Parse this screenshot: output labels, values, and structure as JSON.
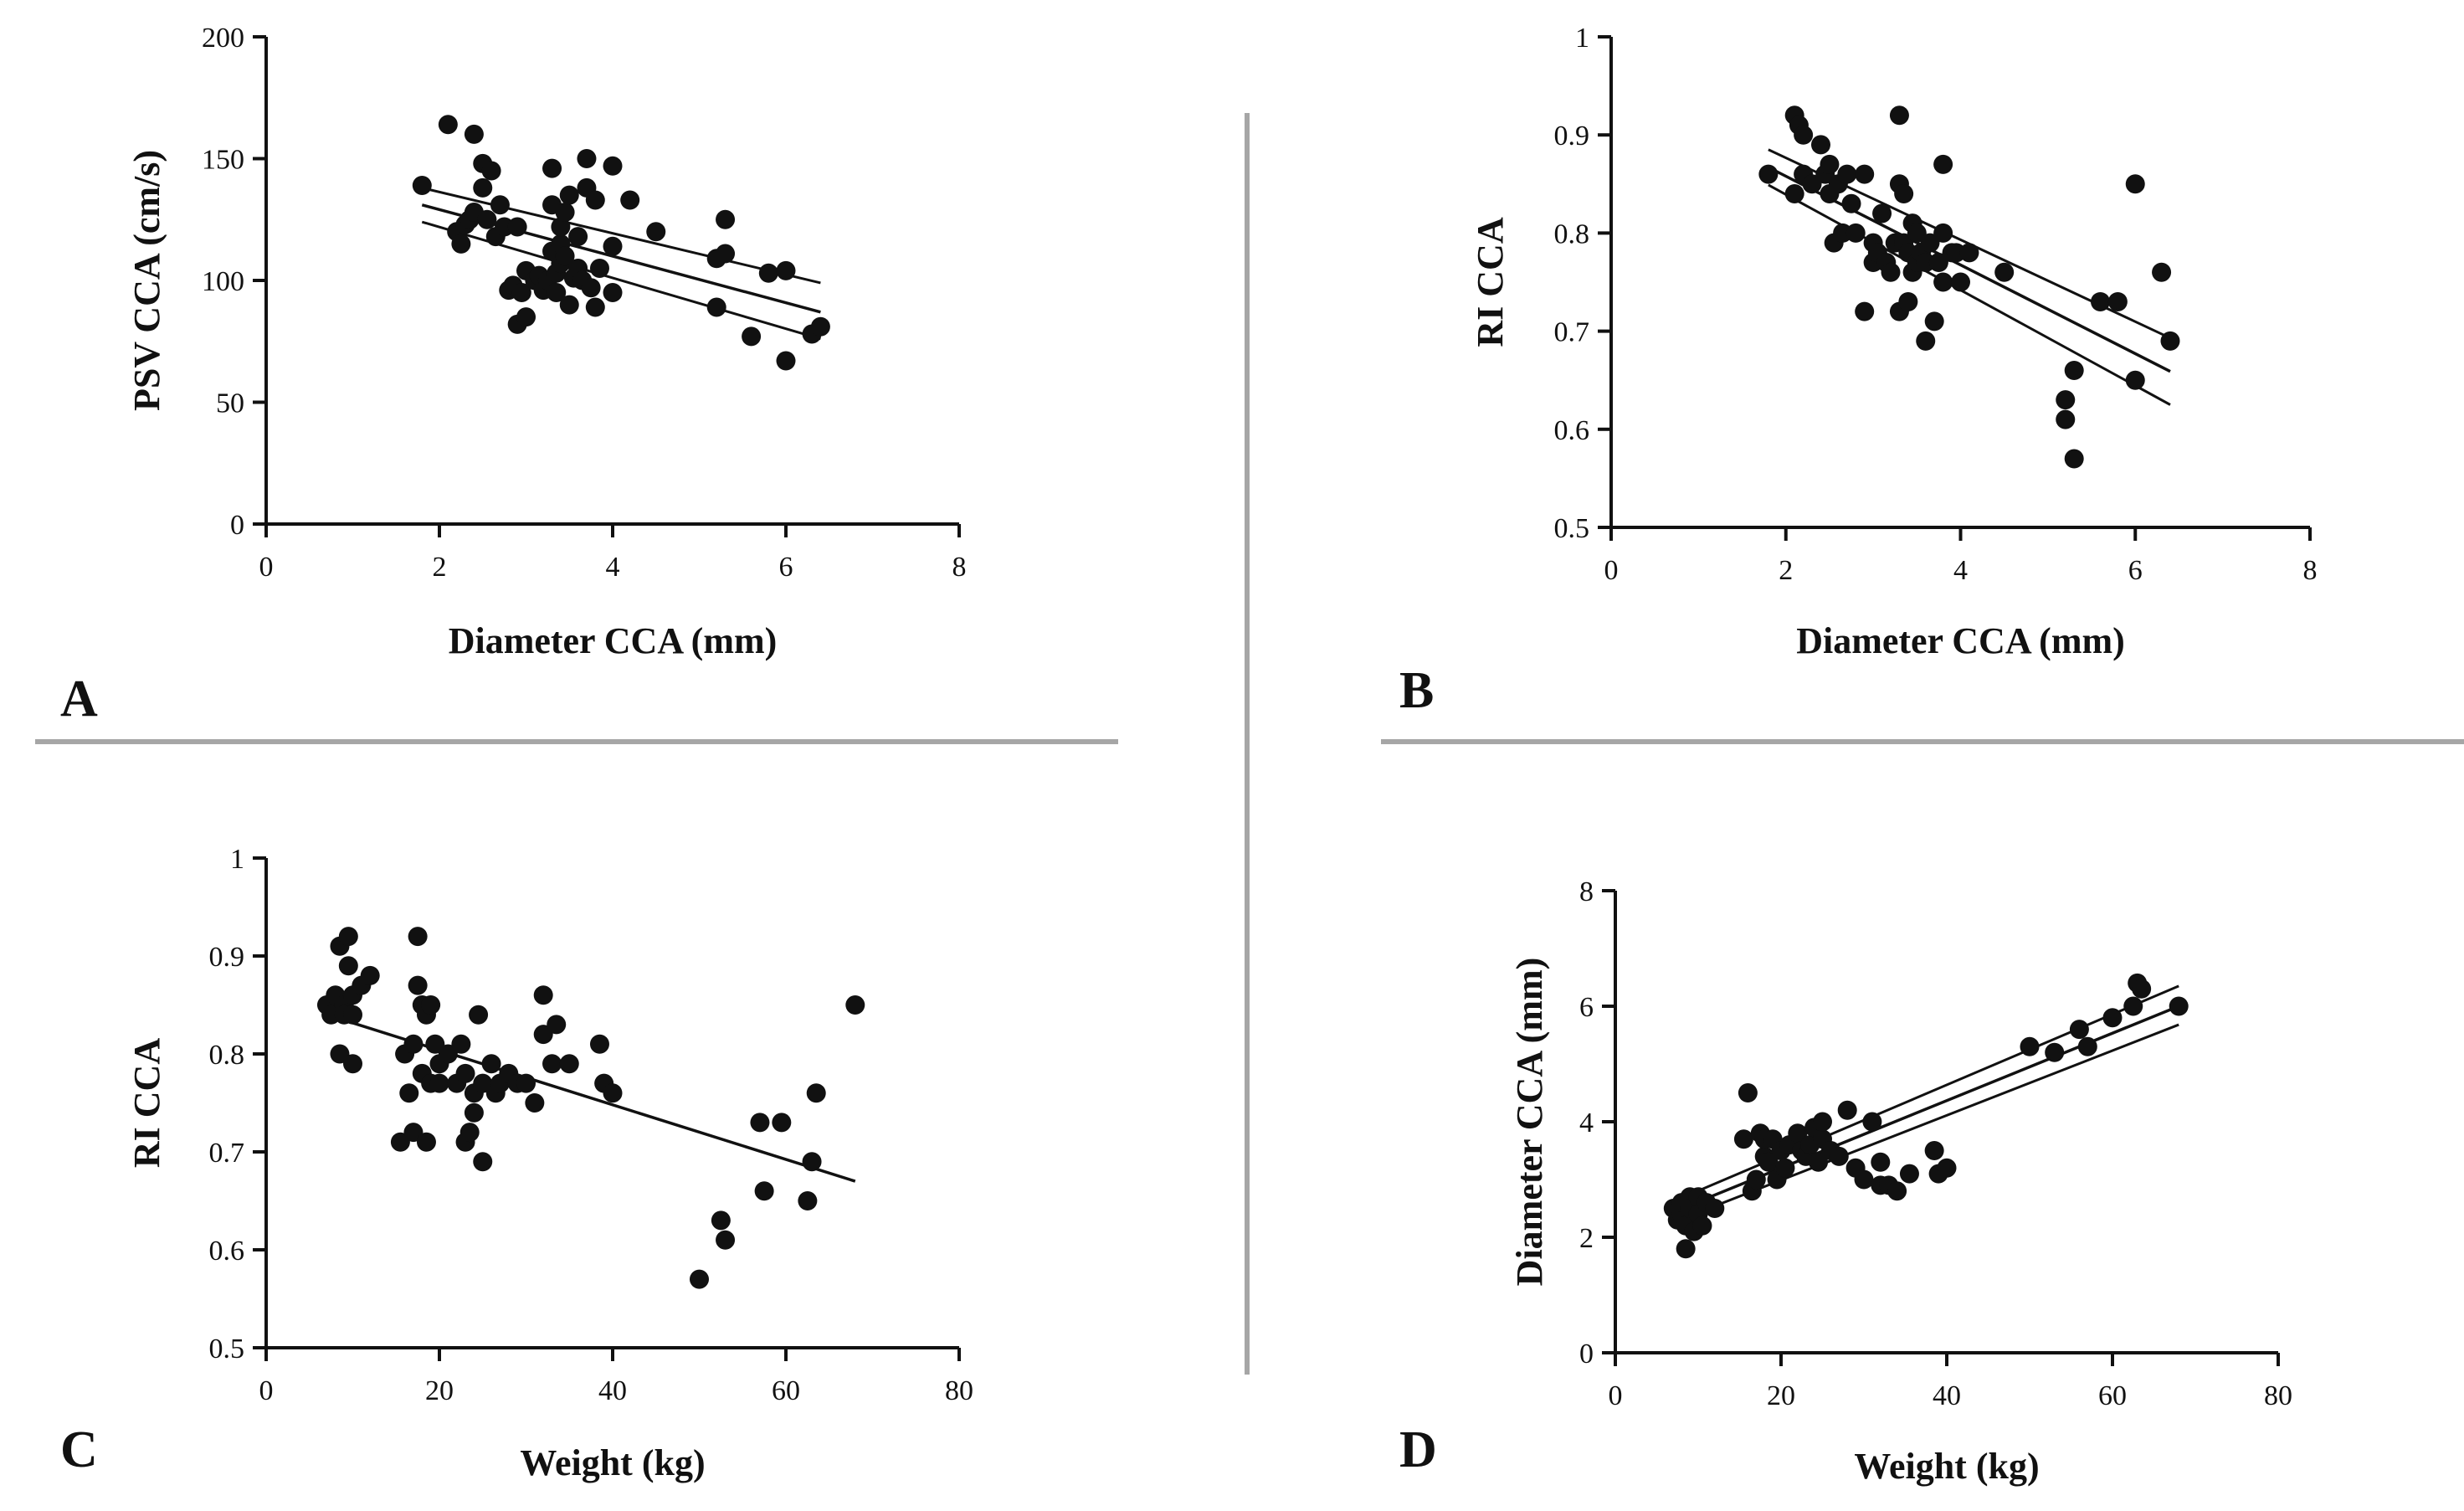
{
  "colors": {
    "ink": "#111111",
    "divider": "#a6a6a6",
    "background": "#ffffff"
  },
  "chart_data": [
    {
      "type": "scatter",
      "panel": "A",
      "xlabel": "Diameter CCA (mm)",
      "ylabel": "PSV CCA (cm/s)",
      "xlim": [
        0,
        8
      ],
      "ylim": [
        0,
        200
      ],
      "xticks": [
        0,
        2,
        4,
        6,
        8
      ],
      "yticks": [
        0,
        50,
        100,
        150,
        200
      ],
      "grid": false,
      "points": [
        [
          1.8,
          139
        ],
        [
          2.1,
          164
        ],
        [
          2.2,
          120
        ],
        [
          2.25,
          115
        ],
        [
          2.3,
          123
        ],
        [
          2.35,
          125
        ],
        [
          2.4,
          160
        ],
        [
          2.4,
          128
        ],
        [
          2.5,
          138
        ],
        [
          2.5,
          148
        ],
        [
          2.55,
          125
        ],
        [
          2.6,
          145
        ],
        [
          2.65,
          118
        ],
        [
          2.7,
          131
        ],
        [
          2.75,
          122
        ],
        [
          2.8,
          96
        ],
        [
          2.85,
          98
        ],
        [
          2.9,
          122
        ],
        [
          2.9,
          82
        ],
        [
          2.95,
          95
        ],
        [
          3.0,
          85
        ],
        [
          3.0,
          104
        ],
        [
          3.1,
          100
        ],
        [
          3.15,
          102
        ],
        [
          3.2,
          96
        ],
        [
          3.25,
          100
        ],
        [
          3.3,
          146
        ],
        [
          3.3,
          131
        ],
        [
          3.3,
          112
        ],
        [
          3.35,
          95
        ],
        [
          3.35,
          103
        ],
        [
          3.4,
          107
        ],
        [
          3.4,
          115
        ],
        [
          3.4,
          122
        ],
        [
          3.45,
          110
        ],
        [
          3.45,
          128
        ],
        [
          3.5,
          90
        ],
        [
          3.5,
          135
        ],
        [
          3.55,
          101
        ],
        [
          3.6,
          105
        ],
        [
          3.6,
          118
        ],
        [
          3.65,
          100
        ],
        [
          3.7,
          150
        ],
        [
          3.7,
          138
        ],
        [
          3.75,
          97
        ],
        [
          3.8,
          89
        ],
        [
          3.8,
          133
        ],
        [
          3.85,
          105
        ],
        [
          4.0,
          147
        ],
        [
          4.0,
          114
        ],
        [
          4.0,
          95
        ],
        [
          4.2,
          133
        ],
        [
          4.5,
          120
        ],
        [
          5.2,
          109
        ],
        [
          5.2,
          89
        ],
        [
          5.3,
          111
        ],
        [
          5.3,
          125
        ],
        [
          5.6,
          77
        ],
        [
          5.8,
          103
        ],
        [
          6.0,
          104
        ],
        [
          6.0,
          67
        ],
        [
          6.3,
          78
        ],
        [
          6.4,
          81
        ]
      ],
      "regression": {
        "x": [
          1.8,
          6.4
        ],
        "fit": [
          131,
          87
        ],
        "upper": [
          138,
          99
        ],
        "lower": [
          124,
          76
        ]
      },
      "legend": "none"
    },
    {
      "type": "scatter",
      "panel": "B",
      "xlabel": "Diameter CCA (mm)",
      "ylabel": "RI CCA",
      "xlim": [
        0,
        8
      ],
      "ylim": [
        0.5,
        1.0
      ],
      "xticks": [
        0,
        2,
        4,
        6,
        8
      ],
      "yticks": [
        0.5,
        0.6,
        0.7,
        0.8,
        0.9,
        1.0
      ],
      "grid": false,
      "points": [
        [
          1.8,
          0.86
        ],
        [
          2.1,
          0.92
        ],
        [
          2.1,
          0.84
        ],
        [
          2.15,
          0.91
        ],
        [
          2.2,
          0.86
        ],
        [
          2.2,
          0.9
        ],
        [
          2.3,
          0.85
        ],
        [
          2.4,
          0.89
        ],
        [
          2.45,
          0.86
        ],
        [
          2.5,
          0.84
        ],
        [
          2.5,
          0.87
        ],
        [
          2.55,
          0.79
        ],
        [
          2.6,
          0.85
        ],
        [
          2.65,
          0.8
        ],
        [
          2.7,
          0.86
        ],
        [
          2.75,
          0.83
        ],
        [
          2.8,
          0.8
        ],
        [
          2.9,
          0.72
        ],
        [
          2.9,
          0.86
        ],
        [
          3.0,
          0.79
        ],
        [
          3.0,
          0.77
        ],
        [
          3.05,
          0.78
        ],
        [
          3.1,
          0.82
        ],
        [
          3.15,
          0.77
        ],
        [
          3.2,
          0.76
        ],
        [
          3.25,
          0.79
        ],
        [
          3.3,
          0.92
        ],
        [
          3.3,
          0.85
        ],
        [
          3.3,
          0.72
        ],
        [
          3.35,
          0.79
        ],
        [
          3.35,
          0.84
        ],
        [
          3.4,
          0.78
        ],
        [
          3.4,
          0.73
        ],
        [
          3.45,
          0.81
        ],
        [
          3.45,
          0.76
        ],
        [
          3.5,
          0.77
        ],
        [
          3.5,
          0.8
        ],
        [
          3.55,
          0.78
        ],
        [
          3.6,
          0.69
        ],
        [
          3.6,
          0.77
        ],
        [
          3.65,
          0.79
        ],
        [
          3.7,
          0.71
        ],
        [
          3.75,
          0.77
        ],
        [
          3.8,
          0.87
        ],
        [
          3.8,
          0.8
        ],
        [
          3.8,
          0.75
        ],
        [
          3.9,
          0.78
        ],
        [
          3.95,
          0.78
        ],
        [
          4.0,
          0.75
        ],
        [
          4.1,
          0.78
        ],
        [
          4.5,
          0.76
        ],
        [
          5.2,
          0.63
        ],
        [
          5.2,
          0.61
        ],
        [
          5.3,
          0.57
        ],
        [
          5.3,
          0.66
        ],
        [
          5.6,
          0.73
        ],
        [
          5.8,
          0.73
        ],
        [
          6.0,
          0.85
        ],
        [
          6.0,
          0.65
        ],
        [
          6.3,
          0.76
        ],
        [
          6.4,
          0.69
        ]
      ],
      "regression": {
        "x": [
          1.8,
          6.4
        ],
        "fit": [
          0.867,
          0.659
        ],
        "upper": [
          0.885,
          0.693
        ],
        "lower": [
          0.849,
          0.625
        ]
      },
      "legend": "none"
    },
    {
      "type": "scatter",
      "panel": "C",
      "xlabel": "Weight (kg)",
      "ylabel": "RI CCA",
      "xlim": [
        0,
        80
      ],
      "ylim": [
        0.5,
        1.0
      ],
      "xticks": [
        0,
        20,
        40,
        60,
        80
      ],
      "yticks": [
        0.5,
        0.6,
        0.7,
        0.8,
        0.9,
        1.0
      ],
      "grid": false,
      "points": [
        [
          7,
          0.85
        ],
        [
          7.5,
          0.84
        ],
        [
          8,
          0.86
        ],
        [
          8.5,
          0.91
        ],
        [
          8.5,
          0.8
        ],
        [
          9,
          0.85
        ],
        [
          9,
          0.84
        ],
        [
          9.5,
          0.92
        ],
        [
          9.5,
          0.89
        ],
        [
          10,
          0.86
        ],
        [
          10,
          0.79
        ],
        [
          10,
          0.84
        ],
        [
          11,
          0.87
        ],
        [
          12,
          0.88
        ],
        [
          15.5,
          0.71
        ],
        [
          16,
          0.8
        ],
        [
          16.5,
          0.76
        ],
        [
          17,
          0.72
        ],
        [
          17,
          0.81
        ],
        [
          17.5,
          0.87
        ],
        [
          17.5,
          0.92
        ],
        [
          18,
          0.85
        ],
        [
          18,
          0.78
        ],
        [
          18.5,
          0.71
        ],
        [
          18.5,
          0.84
        ],
        [
          19,
          0.77
        ],
        [
          19,
          0.85
        ],
        [
          19.5,
          0.81
        ],
        [
          20,
          0.79
        ],
        [
          20,
          0.77
        ],
        [
          21,
          0.8
        ],
        [
          22,
          0.77
        ],
        [
          22.5,
          0.81
        ],
        [
          23,
          0.71
        ],
        [
          23,
          0.78
        ],
        [
          23.5,
          0.72
        ],
        [
          24,
          0.74
        ],
        [
          24,
          0.76
        ],
        [
          24.5,
          0.84
        ],
        [
          25,
          0.77
        ],
        [
          25,
          0.69
        ],
        [
          26,
          0.79
        ],
        [
          26.5,
          0.76
        ],
        [
          27,
          0.77
        ],
        [
          28,
          0.78
        ],
        [
          29,
          0.77
        ],
        [
          30,
          0.77
        ],
        [
          31,
          0.75
        ],
        [
          32,
          0.86
        ],
        [
          32,
          0.82
        ],
        [
          33,
          0.79
        ],
        [
          33.5,
          0.83
        ],
        [
          35,
          0.79
        ],
        [
          38.5,
          0.81
        ],
        [
          39,
          0.77
        ],
        [
          40,
          0.76
        ],
        [
          50,
          0.57
        ],
        [
          52.5,
          0.63
        ],
        [
          53,
          0.61
        ],
        [
          57,
          0.73
        ],
        [
          57.5,
          0.66
        ],
        [
          59.5,
          0.73
        ],
        [
          62.5,
          0.65
        ],
        [
          63,
          0.69
        ],
        [
          63.5,
          0.76
        ],
        [
          68,
          0.85
        ]
      ],
      "regression": {
        "x": [
          7,
          68
        ],
        "fit": [
          0.84,
          0.67
        ]
      },
      "legend": "none"
    },
    {
      "type": "scatter",
      "panel": "D",
      "xlabel": "Weight (kg)",
      "ylabel": "Diameter CCA (mm)",
      "xlim": [
        0,
        80
      ],
      "ylim": [
        0,
        8
      ],
      "xticks": [
        0,
        20,
        40,
        60,
        80
      ],
      "yticks": [
        0,
        2,
        4,
        6,
        8
      ],
      "grid": false,
      "points": [
        [
          7,
          2.5
        ],
        [
          7.5,
          2.3
        ],
        [
          8,
          2.4
        ],
        [
          8,
          2.6
        ],
        [
          8.5,
          1.8
        ],
        [
          8.5,
          2.2
        ],
        [
          9,
          2.7
        ],
        [
          9,
          2.5
        ],
        [
          9.5,
          2.1
        ],
        [
          10,
          2.7
        ],
        [
          10,
          2.4
        ],
        [
          10.5,
          2.2
        ],
        [
          11,
          2.6
        ],
        [
          12,
          2.5
        ],
        [
          15.5,
          3.7
        ],
        [
          16,
          4.5
        ],
        [
          16.5,
          2.8
        ],
        [
          17,
          3.0
        ],
        [
          17.5,
          3.8
        ],
        [
          18,
          3.4
        ],
        [
          18,
          3.7
        ],
        [
          18.5,
          3.3
        ],
        [
          19,
          3.7
        ],
        [
          19.5,
          3.0
        ],
        [
          20,
          3.5
        ],
        [
          20.5,
          3.2
        ],
        [
          21,
          3.6
        ],
        [
          22,
          3.8
        ],
        [
          22.5,
          3.5
        ],
        [
          23,
          3.4
        ],
        [
          23.5,
          3.6
        ],
        [
          24,
          3.9
        ],
        [
          24.5,
          3.3
        ],
        [
          25,
          3.7
        ],
        [
          25,
          4.0
        ],
        [
          26,
          3.5
        ],
        [
          27,
          3.4
        ],
        [
          28,
          4.2
        ],
        [
          29,
          3.2
        ],
        [
          30,
          3.0
        ],
        [
          31,
          4.0
        ],
        [
          32,
          3.3
        ],
        [
          32,
          2.9
        ],
        [
          33,
          2.9
        ],
        [
          34,
          2.8
        ],
        [
          35.5,
          3.1
        ],
        [
          38.5,
          3.5
        ],
        [
          39,
          3.1
        ],
        [
          40,
          3.2
        ],
        [
          50,
          5.3
        ],
        [
          53,
          5.2
        ],
        [
          56,
          5.6
        ],
        [
          57,
          5.3
        ],
        [
          60,
          5.8
        ],
        [
          62.5,
          6.0
        ],
        [
          63,
          6.4
        ],
        [
          63.5,
          6.3
        ],
        [
          68,
          6.0
        ]
      ],
      "regression": {
        "x": [
          7,
          68
        ],
        "fit": [
          2.44,
          6.0
        ],
        "upper": [
          2.62,
          6.35
        ],
        "lower": [
          2.26,
          5.68
        ]
      },
      "legend": "none"
    }
  ]
}
